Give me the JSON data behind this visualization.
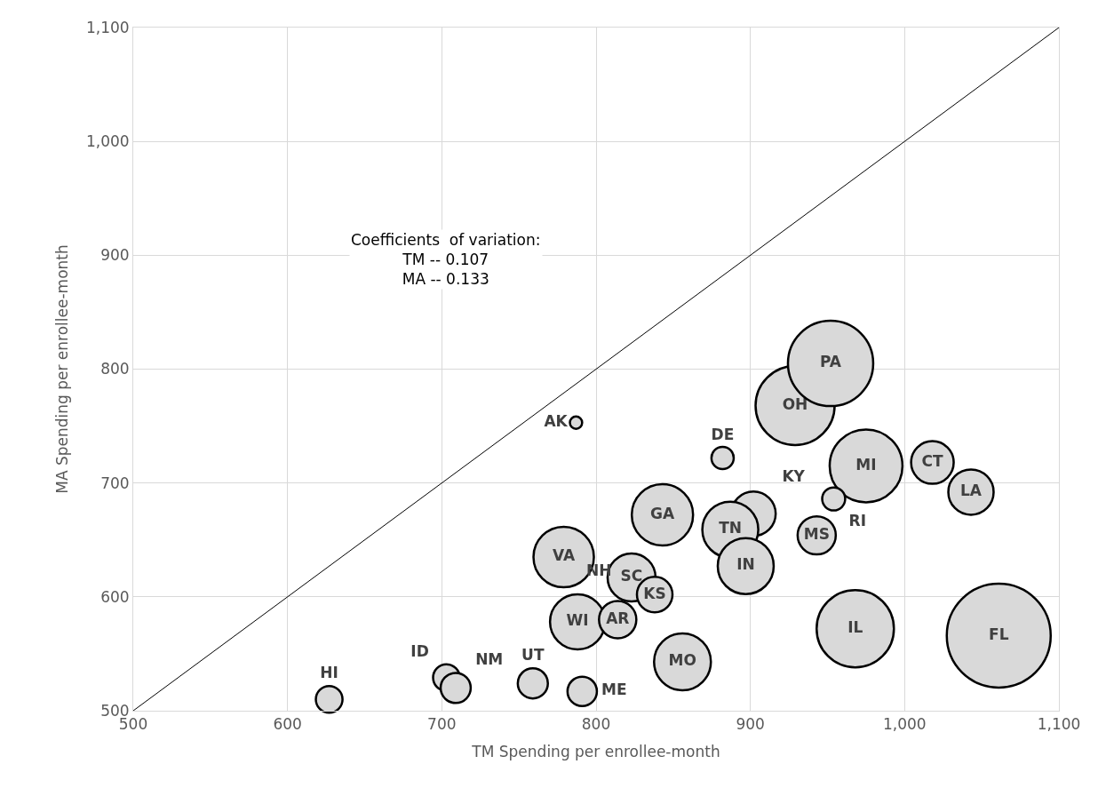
{
  "chart_data": {
    "type": "bubble",
    "xlabel": "TM Spending per enrollee-month",
    "ylabel": "MA Spending per enrollee-month",
    "xlim": [
      500,
      1100
    ],
    "xticks": [
      500,
      600,
      700,
      800,
      900,
      {
        "value": 1000,
        "label": "1,000"
      },
      {
        "value": 1100,
        "label": "1,100"
      }
    ],
    "ylim": [
      500,
      1100
    ],
    "yticks": [
      500,
      600,
      700,
      800,
      900,
      {
        "value": 1000,
        "label": "1,000"
      },
      {
        "value": 1100,
        "label": "1,100"
      }
    ],
    "grid": true,
    "legend": false,
    "annotations": [
      "Coefficients  of variation:\nTM -- 0.107\nMA -- 0.133",
      "NH"
    ],
    "series": [
      {
        "type": "line",
        "color": "#000000",
        "x": [
          500,
          1100
        ],
        "values": [
          500,
          1100
        ]
      },
      {
        "name": "HI",
        "color": "#d9d9d9",
        "x": [
          627
        ],
        "values": [
          510
        ],
        "sizes": [
          0.066
        ]
      },
      {
        "name": "ID",
        "color": "#d9d9d9",
        "x": [
          703
        ],
        "values": [
          529
        ],
        "sizes": [
          0.066
        ]
      },
      {
        "name": "NM",
        "color": "#d9d9d9",
        "x": [
          709
        ],
        "values": [
          520
        ],
        "sizes": [
          0.084
        ]
      },
      {
        "name": "UT",
        "color": "#d9d9d9",
        "x": [
          759
        ],
        "values": [
          524
        ],
        "sizes": [
          0.084
        ]
      },
      {
        "name": "ME",
        "color": "#d9d9d9",
        "x": [
          791
        ],
        "values": [
          517
        ],
        "sizes": [
          0.08
        ]
      },
      {
        "name": "AK",
        "color": "#d9d9d9",
        "x": [
          787
        ],
        "values": [
          753
        ],
        "sizes": [
          0.014
        ]
      },
      {
        "name": "VA",
        "color": "#d9d9d9",
        "x": [
          779
        ],
        "values": [
          635
        ],
        "sizes": [
          0.338
        ]
      },
      {
        "name": "WI",
        "color": "#d9d9d9",
        "x": [
          788
        ],
        "values": [
          578
        ],
        "sizes": [
          0.281
        ]
      },
      {
        "name": "AR",
        "color": "#d9d9d9",
        "x": [
          814
        ],
        "values": [
          580
        ],
        "sizes": [
          0.129
        ]
      },
      {
        "name": "SC",
        "color": "#d9d9d9",
        "x": [
          823
        ],
        "values": [
          617
        ],
        "sizes": [
          0.213
        ]
      },
      {
        "name": "KS",
        "color": "#d9d9d9",
        "x": [
          838
        ],
        "values": [
          602
        ],
        "sizes": [
          0.117
        ]
      },
      {
        "name": "GA",
        "color": "#d9d9d9",
        "x": [
          843
        ],
        "values": [
          672
        ],
        "sizes": [
          0.348
        ]
      },
      {
        "name": "MO",
        "color": "#d9d9d9",
        "x": [
          856
        ],
        "values": [
          543
        ],
        "sizes": [
          0.299
        ]
      },
      {
        "name": "DE",
        "color": "#d9d9d9",
        "x": [
          882
        ],
        "values": [
          722
        ],
        "sizes": [
          0.046
        ]
      },
      {
        "name": "KY",
        "color": "#d9d9d9",
        "x": [
          902
        ],
        "values": [
          673
        ],
        "sizes": [
          0.183
        ]
      },
      {
        "name": "TN",
        "color": "#d9d9d9",
        "x": [
          887
        ],
        "values": [
          659
        ],
        "sizes": [
          0.29
        ]
      },
      {
        "name": "IN",
        "color": "#d9d9d9",
        "x": [
          897
        ],
        "values": [
          627
        ],
        "sizes": [
          0.29
        ]
      },
      {
        "name": "OH",
        "color": "#d9d9d9",
        "x": [
          929
        ],
        "values": [
          768
        ],
        "sizes": [
          0.579
        ]
      },
      {
        "name": "PA",
        "color": "#d9d9d9",
        "x": [
          952
        ],
        "values": [
          805
        ],
        "sizes": [
          0.673
        ]
      },
      {
        "name": "MI",
        "color": "#d9d9d9",
        "x": [
          975
        ],
        "values": [
          715
        ],
        "sizes": [
          0.491
        ]
      },
      {
        "name": "RI",
        "color": "#d9d9d9",
        "x": [
          954
        ],
        "values": [
          686
        ],
        "sizes": [
          0.049
        ]
      },
      {
        "name": "MS",
        "color": "#d9d9d9",
        "x": [
          943
        ],
        "values": [
          654
        ],
        "sizes": [
          0.135
        ]
      },
      {
        "name": "IL",
        "color": "#d9d9d9",
        "x": [
          968
        ],
        "values": [
          572
        ],
        "sizes": [
          0.553
        ]
      },
      {
        "name": "CT",
        "color": "#d9d9d9",
        "x": [
          1018
        ],
        "values": [
          718
        ],
        "sizes": [
          0.168
        ]
      },
      {
        "name": "LA",
        "color": "#d9d9d9",
        "x": [
          1043
        ],
        "values": [
          692
        ],
        "sizes": [
          0.19
        ]
      },
      {
        "name": "FL",
        "color": "#d9d9d9",
        "x": [
          1061
        ],
        "values": [
          566
        ],
        "sizes": [
          1
        ]
      }
    ]
  }
}
